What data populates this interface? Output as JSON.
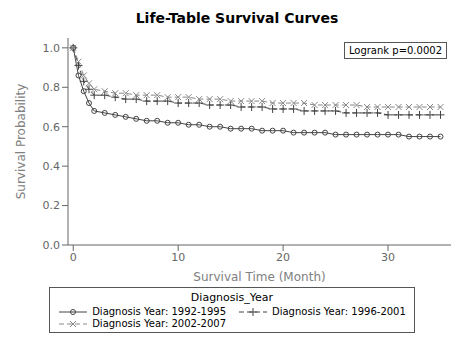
{
  "chart_data": {
    "type": "line",
    "title": "Life-Table Survival Curves",
    "xlabel": "Survival Time (Month)",
    "ylabel": "Survival Probability",
    "xlim": [
      -0.5,
      36
    ],
    "ylim": [
      0.0,
      1.05
    ],
    "xticks": [
      0,
      10,
      20,
      30
    ],
    "yticks": [
      {
        "value": 0.0,
        "label": "0.0"
      },
      {
        "value": 0.2,
        "label": "0.2"
      },
      {
        "value": 0.4,
        "label": "0.4"
      },
      {
        "value": 0.6,
        "label": "0.6"
      },
      {
        "value": 0.8,
        "label": "0.8"
      },
      {
        "value": 1.0,
        "label": "1.0"
      }
    ],
    "annotations": [
      "Logrank p=0.0002"
    ],
    "legend_title": "Diagnosis_Year",
    "legend": "bottom",
    "grid": false,
    "x": [
      0,
      0.5,
      1,
      1.5,
      2,
      3,
      4,
      5,
      6,
      7,
      8,
      9,
      10,
      11,
      12,
      13,
      14,
      15,
      16,
      17,
      18,
      19,
      20,
      21,
      22,
      23,
      24,
      25,
      26,
      27,
      28,
      29,
      30,
      31,
      32,
      33,
      34,
      35
    ],
    "series": [
      {
        "name": "Diagnosis Year: 1992-1995",
        "color": "#444444",
        "line_style": "solid",
        "marker": "circle",
        "values": [
          1.0,
          0.86,
          0.78,
          0.72,
          0.68,
          0.67,
          0.66,
          0.65,
          0.64,
          0.63,
          0.63,
          0.62,
          0.62,
          0.61,
          0.61,
          0.6,
          0.6,
          0.59,
          0.59,
          0.59,
          0.58,
          0.58,
          0.58,
          0.57,
          0.57,
          0.57,
          0.57,
          0.56,
          0.56,
          0.56,
          0.56,
          0.56,
          0.56,
          0.56,
          0.55,
          0.55,
          0.55,
          0.55
        ]
      },
      {
        "name": "Diagnosis Year: 1996-2001",
        "color": "#444444",
        "line_style": "dashed",
        "marker": "plus",
        "values": [
          1.0,
          0.91,
          0.83,
          0.79,
          0.76,
          0.76,
          0.75,
          0.74,
          0.74,
          0.73,
          0.73,
          0.73,
          0.72,
          0.72,
          0.72,
          0.71,
          0.71,
          0.71,
          0.7,
          0.7,
          0.7,
          0.69,
          0.69,
          0.69,
          0.68,
          0.68,
          0.68,
          0.68,
          0.67,
          0.67,
          0.67,
          0.67,
          0.66,
          0.66,
          0.66,
          0.66,
          0.66,
          0.66
        ]
      },
      {
        "name": "Diagnosis Year: 2002-2007",
        "color": "#888888",
        "line_style": "dashed",
        "marker": "cross",
        "values": [
          1.0,
          0.93,
          0.86,
          0.82,
          0.79,
          0.78,
          0.77,
          0.77,
          0.76,
          0.76,
          0.76,
          0.75,
          0.75,
          0.75,
          0.74,
          0.74,
          0.74,
          0.73,
          0.73,
          0.73,
          0.73,
          0.72,
          0.72,
          0.72,
          0.72,
          0.71,
          0.71,
          0.71,
          0.71,
          0.71,
          0.7,
          0.7,
          0.7,
          0.7,
          0.7,
          0.7,
          0.7,
          0.7
        ]
      }
    ]
  }
}
